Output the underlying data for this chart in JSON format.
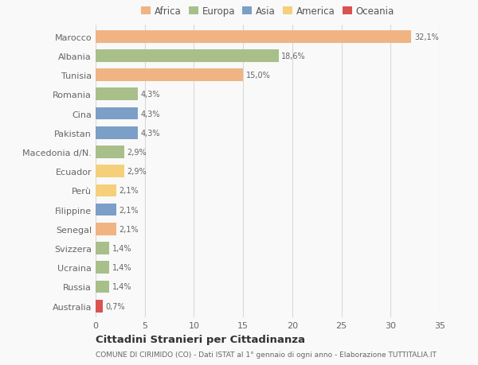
{
  "countries": [
    "Marocco",
    "Albania",
    "Tunisia",
    "Romania",
    "Cina",
    "Pakistan",
    "Macedonia d/N.",
    "Ecuador",
    "Perù",
    "Filippine",
    "Senegal",
    "Svizzera",
    "Ucraina",
    "Russia",
    "Australia"
  ],
  "values": [
    32.1,
    18.6,
    15.0,
    4.3,
    4.3,
    4.3,
    2.9,
    2.9,
    2.1,
    2.1,
    2.1,
    1.4,
    1.4,
    1.4,
    0.7
  ],
  "labels": [
    "32,1%",
    "18,6%",
    "15,0%",
    "4,3%",
    "4,3%",
    "4,3%",
    "2,9%",
    "2,9%",
    "2,1%",
    "2,1%",
    "2,1%",
    "1,4%",
    "1,4%",
    "1,4%",
    "0,7%"
  ],
  "colors": [
    "#f0b482",
    "#a8bf8a",
    "#f0b482",
    "#a8bf8a",
    "#7b9fc7",
    "#7b9fc7",
    "#a8bf8a",
    "#f5cf7a",
    "#f5cf7a",
    "#7b9fc7",
    "#f0b482",
    "#a8bf8a",
    "#a8bf8a",
    "#a8bf8a",
    "#d9534f"
  ],
  "legend_labels": [
    "Africa",
    "Europa",
    "Asia",
    "America",
    "Oceania"
  ],
  "legend_colors": [
    "#f0b482",
    "#a8bf8a",
    "#7b9fc7",
    "#f5cf7a",
    "#d9534f"
  ],
  "title": "Cittadini Stranieri per Cittadinanza",
  "subtitle": "COMUNE DI CIRIMIDO (CO) - Dati ISTAT al 1° gennaio di ogni anno - Elaborazione TUTTITALIA.IT",
  "xlim": [
    0,
    35
  ],
  "xticks": [
    0,
    5,
    10,
    15,
    20,
    25,
    30,
    35
  ],
  "background_color": "#f9f9f9",
  "grid_color": "#d8d8d8",
  "bar_height": 0.65
}
